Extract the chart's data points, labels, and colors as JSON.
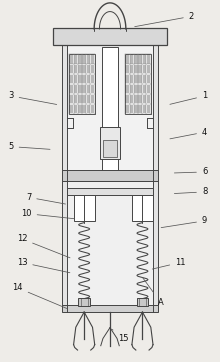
{
  "bg_color": "#eeece8",
  "line_color": "#444444",
  "figsize": [
    2.2,
    3.62
  ],
  "dpi": 100,
  "labels_info": {
    "1": [
      0.93,
      0.735,
      0.76,
      0.71
    ],
    "2": [
      0.87,
      0.955,
      0.6,
      0.925
    ],
    "3": [
      0.05,
      0.735,
      0.27,
      0.71
    ],
    "4": [
      0.93,
      0.635,
      0.76,
      0.615
    ],
    "5": [
      0.05,
      0.595,
      0.24,
      0.587
    ],
    "6": [
      0.93,
      0.525,
      0.78,
      0.522
    ],
    "7": [
      0.13,
      0.455,
      0.31,
      0.435
    ],
    "8": [
      0.93,
      0.47,
      0.78,
      0.465
    ],
    "9": [
      0.93,
      0.39,
      0.72,
      0.37
    ],
    "10": [
      0.12,
      0.41,
      0.35,
      0.395
    ],
    "11": [
      0.82,
      0.275,
      0.68,
      0.255
    ],
    "12": [
      0.1,
      0.34,
      0.33,
      0.285
    ],
    "13": [
      0.1,
      0.275,
      0.33,
      0.245
    ],
    "14": [
      0.08,
      0.205,
      0.315,
      0.145
    ],
    "15": [
      0.56,
      0.065,
      0.5,
      0.095
    ],
    "A": [
      0.73,
      0.165,
      0.64,
      0.24
    ]
  }
}
